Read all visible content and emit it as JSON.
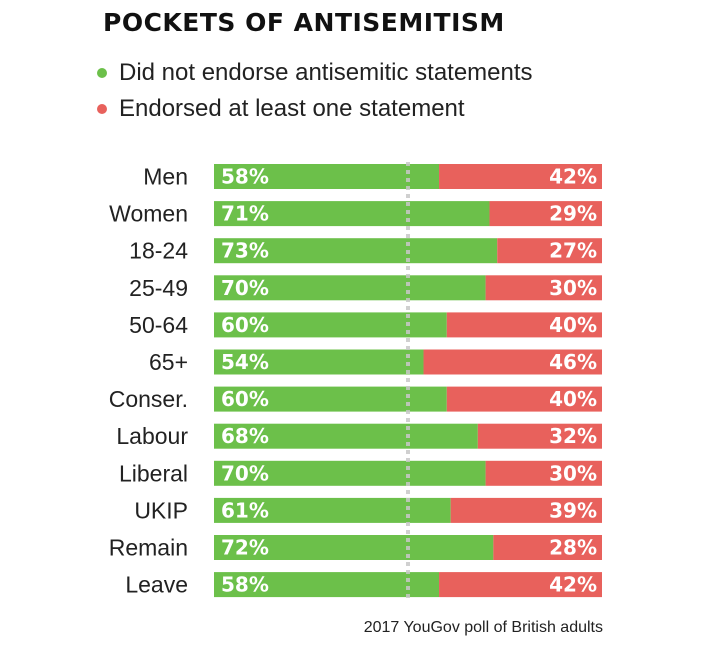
{
  "chart_data": {
    "type": "bar",
    "stacked": true,
    "orientation": "horizontal",
    "title": "POCKETS OF ANTISEMITISM",
    "categories": [
      "Men",
      "Women",
      "18-24",
      "25-49",
      "50-64",
      "65+",
      "Conser.",
      "Labour",
      "Liberal",
      "UKIP",
      "Remain",
      "Leave"
    ],
    "series": [
      {
        "name": "Did not endorse antisemitic statements",
        "color": "#6cc04a",
        "values": [
          58,
          71,
          73,
          70,
          60,
          54,
          60,
          68,
          70,
          61,
          72,
          58
        ]
      },
      {
        "name": "Endorsed at least one statement",
        "color": "#e8615c",
        "values": [
          42,
          29,
          27,
          30,
          40,
          46,
          40,
          32,
          30,
          39,
          28,
          42
        ]
      }
    ],
    "value_suffix": "%",
    "xlim": [
      0,
      100
    ],
    "reference_line_at": 50,
    "source": "2017 YouGov poll of British adults"
  }
}
